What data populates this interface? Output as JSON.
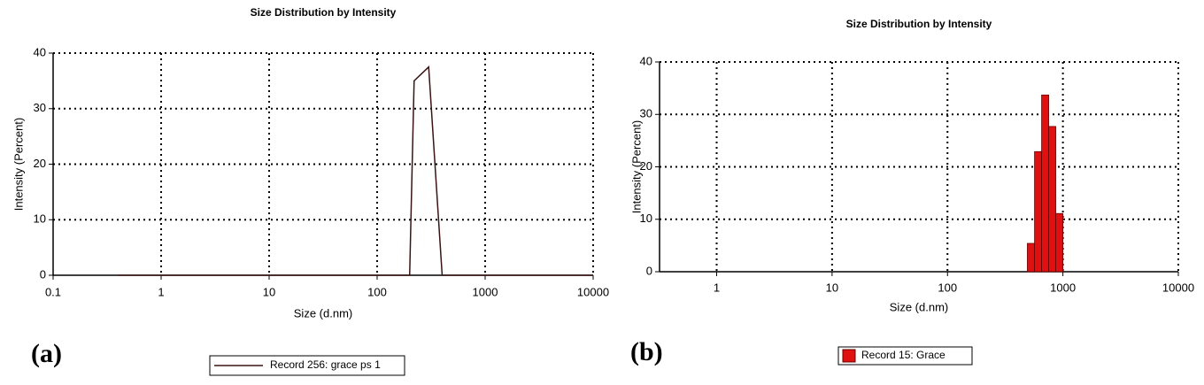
{
  "chart_data": [
    {
      "type": "line",
      "title": "Size Distribution by Intensity",
      "panel_label": "(a)",
      "x_label": "Size (d.nm)",
      "y_label": "Intensity (Percent)",
      "log_x": true,
      "grid": true,
      "xlim": [
        0.1,
        10000
      ],
      "xticks": [
        0.1,
        1,
        10,
        100,
        1000,
        10000
      ],
      "ylim": [
        0,
        40
      ],
      "yticks": [
        0,
        10,
        20,
        30,
        40
      ],
      "series": [
        {
          "name": "Record 256: grace ps 1",
          "color": "#3a1414",
          "x": [
            0.4,
            200,
            220,
            300,
            400,
            10000
          ],
          "y": [
            0,
            0,
            35,
            37.5,
            0,
            0
          ]
        }
      ]
    },
    {
      "type": "histogram",
      "title": "Size Distribution by Intensity",
      "panel_label": "(b)",
      "x_label": "Size (d.nm)",
      "y_label": "Intensity (Percent)",
      "log_x": true,
      "grid": true,
      "xlim": [
        0.32,
        10000
      ],
      "xticks": [
        1,
        10,
        100,
        1000,
        10000
      ],
      "ylim": [
        0,
        40
      ],
      "yticks": [
        0,
        10,
        20,
        30,
        40
      ],
      "bins": [
        492,
        568,
        654,
        753,
        867,
        1000
      ],
      "series": [
        {
          "name": "Record 15: Grace",
          "color": "#e01010",
          "values": [
            5.4,
            22.9,
            33.7,
            27.7,
            11.1
          ]
        }
      ]
    }
  ]
}
